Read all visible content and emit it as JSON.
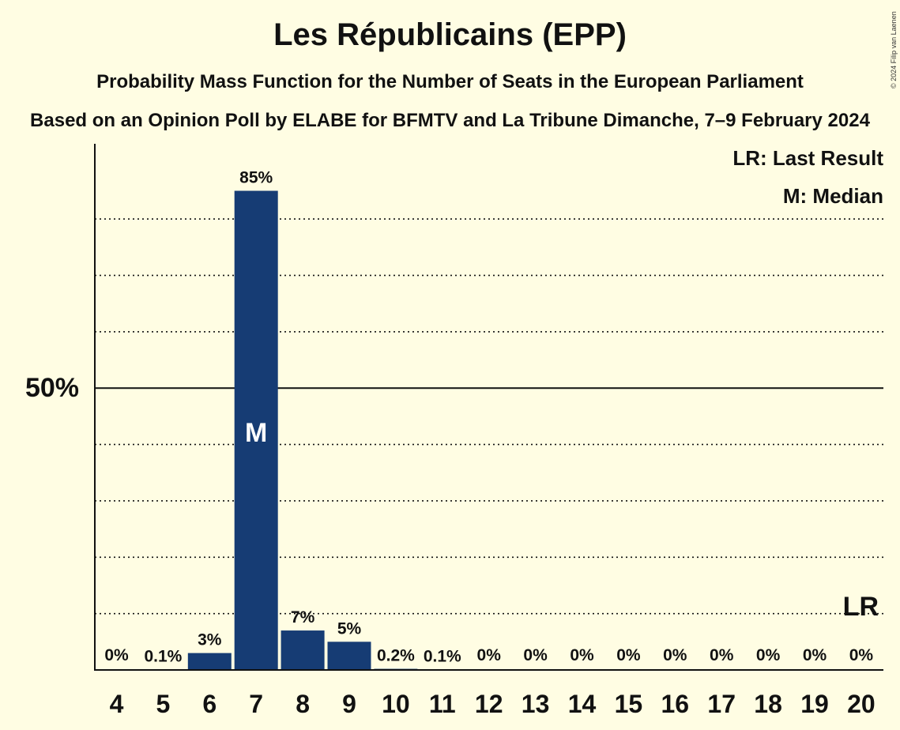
{
  "header": {
    "title": "Les Républicains (EPP)",
    "subtitle": "Probability Mass Function for the Number of Seats in the European Parliament",
    "subtitle2": "Based on an Opinion Poll by ELABE for BFMTV and La Tribune Dimanche, 7–9 February 2024",
    "copyright": "© 2024 Filip van Laenen"
  },
  "legend": {
    "last_result": "LR: Last Result",
    "median": "M: Median"
  },
  "chart_data": {
    "type": "bar",
    "title": "Les Républicains (EPP)",
    "categories": [
      "4",
      "5",
      "6",
      "7",
      "8",
      "9",
      "10",
      "11",
      "12",
      "13",
      "14",
      "15",
      "16",
      "17",
      "18",
      "19",
      "20"
    ],
    "values": [
      0,
      0.1,
      3,
      85,
      7,
      5,
      0.2,
      0.1,
      0,
      0,
      0,
      0,
      0,
      0,
      0,
      0,
      0
    ],
    "value_labels": [
      "0%",
      "0.1%",
      "3%",
      "85%",
      "7%",
      "5%",
      "0.2%",
      "0.1%",
      "0%",
      "0%",
      "0%",
      "0%",
      "0%",
      "0%",
      "0%",
      "0%",
      "0%"
    ],
    "ylim": [
      0,
      92.5
    ],
    "y_tick_label": "50%",
    "y_tick_value": 50,
    "gridlines": [
      10,
      20,
      30,
      40,
      60,
      70,
      80
    ],
    "median_category": "7",
    "median_label": "M",
    "last_result_category": "20",
    "last_result_label": "LR",
    "bar_color": "#163c74",
    "legend_position": "top-right"
  }
}
